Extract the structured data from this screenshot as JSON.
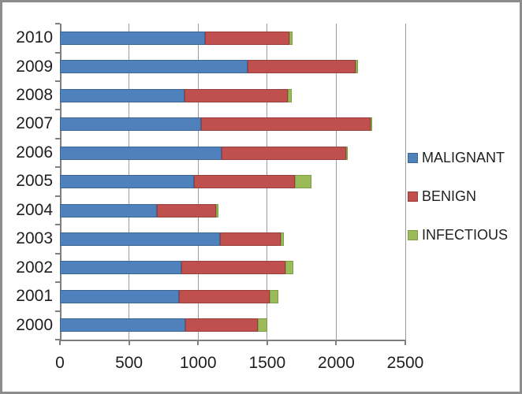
{
  "chart_data": {
    "type": "bar",
    "orientation": "horizontal",
    "stacked": true,
    "grid": "vertical",
    "legend_position": "right",
    "xlim": [
      0,
      2500
    ],
    "x_ticks": [
      0,
      500,
      1000,
      1500,
      2000,
      2500
    ],
    "x_tick_labels": [
      "0",
      "500",
      "1000",
      "1500",
      "2000",
      "2500"
    ],
    "categories": [
      "2010",
      "2009",
      "2008",
      "2007",
      "2006",
      "2005",
      "2004",
      "2003",
      "2002",
      "2001",
      "2000"
    ],
    "series": [
      {
        "name": "MALIGNANT",
        "color": "#4f81bd",
        "border_color": "#3c6494",
        "values": [
          1050,
          1360,
          900,
          1020,
          1170,
          970,
          700,
          1160,
          880,
          860,
          910
        ]
      },
      {
        "name": "BENIGN",
        "color": "#c0504d",
        "border_color": "#9a3f3d",
        "values": [
          610,
          780,
          750,
          1230,
          900,
          730,
          430,
          440,
          750,
          660,
          520
        ]
      },
      {
        "name": "INFECTIOUS",
        "color": "#9bbb59",
        "border_color": "#7e9c44",
        "values": [
          25,
          20,
          30,
          10,
          10,
          120,
          15,
          20,
          60,
          60,
          70
        ]
      }
    ],
    "axis_color": "#7f7f7f",
    "gridline_color": "#9c9c9c"
  }
}
